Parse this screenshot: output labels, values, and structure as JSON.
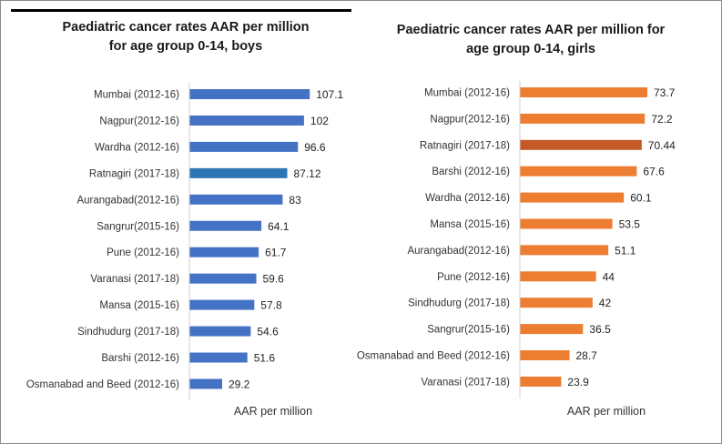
{
  "chart_data": [
    {
      "type": "bar",
      "orientation": "horizontal",
      "title_lines": [
        "Paediatric cancer rates AAR per million",
        "for age group 0-14, boys"
      ],
      "xlabel": "AAR per million",
      "categories": [
        "Mumbai (2012-16)",
        "Nagpur(2012-16)",
        "Wardha (2012-16)",
        "Ratnagiri (2017-18)",
        "Aurangabad(2012-16)",
        "Sangrur(2015-16)",
        "Pune (2012-16)",
        "Varanasi (2017-18)",
        "Mansa (2015-16)",
        "Sindhudurg (2017-18)",
        "Barshi (2012-16)",
        "Osmanabad and Beed (2012-16)"
      ],
      "values": [
        107.1,
        102,
        96.6,
        87.12,
        83,
        64.1,
        61.7,
        59.6,
        57.8,
        54.6,
        51.6,
        29.2
      ],
      "value_labels": [
        "107.1",
        "102",
        "96.6",
        "87.12",
        "83",
        "64.1",
        "61.7",
        "59.6",
        "57.8",
        "54.6",
        "51.6",
        "29.2"
      ],
      "bar_color": "#4472c4",
      "highlight_index": 3,
      "highlight_color": "#2e75b6",
      "xlim": [
        0,
        125
      ]
    },
    {
      "type": "bar",
      "orientation": "horizontal",
      "title_lines": [
        "Paediatric cancer rates AAR per million for",
        "age group 0-14, girls"
      ],
      "xlabel": "AAR per million",
      "categories": [
        "Mumbai (2012-16)",
        "Nagpur(2012-16)",
        "Ratnagiri (2017-18)",
        "Barshi (2012-16)",
        "Wardha (2012-16)",
        "Mansa (2015-16)",
        "Aurangabad(2012-16)",
        "Pune (2012-16)",
        "Sindhudurg (2017-18)",
        "Sangrur(2015-16)",
        "Osmanabad and Beed (2012-16)",
        "Varanasi (2017-18)"
      ],
      "values": [
        73.7,
        72.2,
        70.44,
        67.6,
        60.1,
        53.5,
        51.1,
        44,
        42,
        36.5,
        28.7,
        23.9
      ],
      "value_labels": [
        "73.7",
        "72.2",
        "70.44",
        "67.6",
        "60.1",
        "53.5",
        "51.1",
        "44",
        "42",
        "36.5",
        "28.7",
        "23.9"
      ],
      "bar_color": "#ed7d31",
      "highlight_index": 2,
      "highlight_color": "#c55a28",
      "xlim": [
        0,
        85
      ]
    }
  ]
}
